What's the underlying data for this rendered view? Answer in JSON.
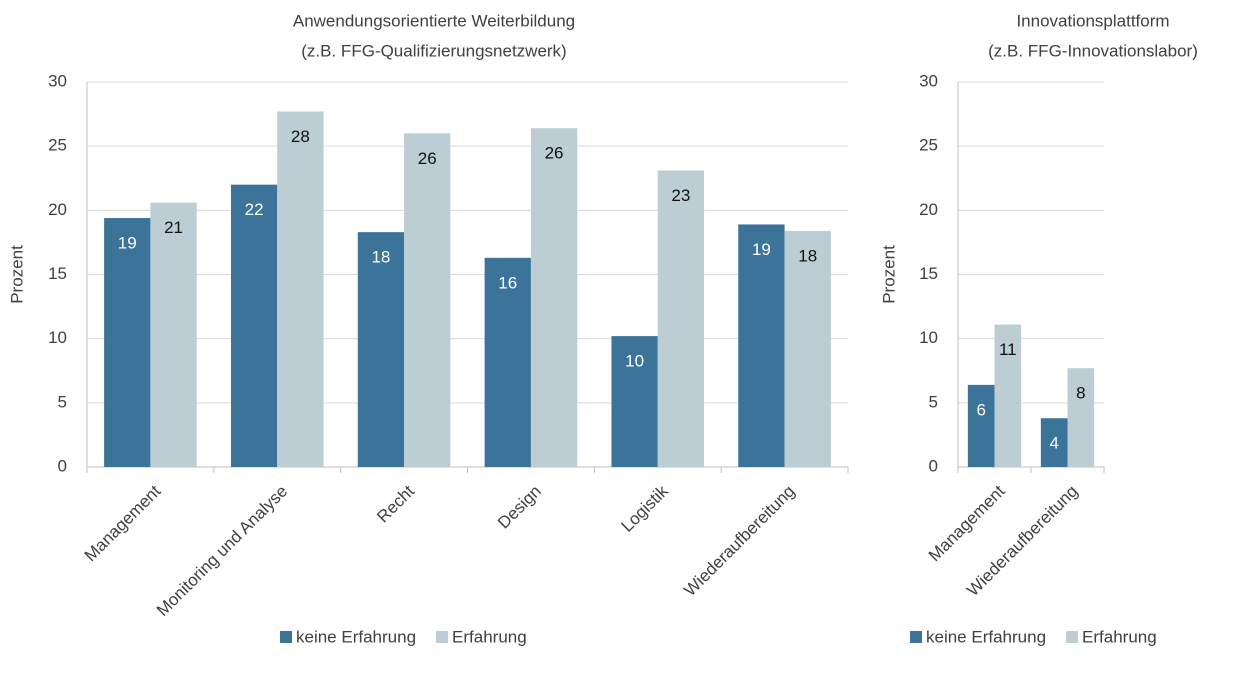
{
  "chart_data": [
    {
      "type": "bar",
      "title": "Anwendungsorientierte Weiterbildung",
      "subtitle": "(z.B. FFG-Qualifizierungsnetzwerk)",
      "y_label": "Prozent",
      "categories": [
        "Management",
        "Monitoring und Analyse",
        "Recht",
        "Design",
        "Logistik",
        "Wiederaufbereitung"
      ],
      "series": [
        {
          "name": "keine Erfahrung",
          "color": "#3b7399",
          "values": [
            19.4,
            22.0,
            18.3,
            16.3,
            10.2,
            18.9
          ],
          "value_labels": [
            "19",
            "22",
            "18",
            "16",
            "10",
            "19"
          ]
        },
        {
          "name": "Erfahrung",
          "color": "#bccdd3",
          "values": [
            20.6,
            27.7,
            26.0,
            26.4,
            23.1,
            18.4
          ],
          "value_labels": [
            "21",
            "28",
            "26",
            "26",
            "23",
            "18"
          ]
        }
      ],
      "ylim": [
        0,
        30
      ],
      "yticks": [
        0,
        5,
        10,
        15,
        20,
        25,
        30
      ],
      "grid": true,
      "legend": "bottom"
    },
    {
      "type": "bar",
      "title": "Innovationsplattform",
      "subtitle": "(z.B. FFG-Innovationslabor)",
      "y_label": "Prozent",
      "categories": [
        "Management",
        "Wiederaufbereitung"
      ],
      "series": [
        {
          "name": "keine Erfahrung",
          "color": "#3b7399",
          "values": [
            6.4,
            3.8
          ],
          "value_labels": [
            "6",
            "4"
          ]
        },
        {
          "name": "Erfahrung",
          "color": "#bccdd3",
          "values": [
            11.1,
            7.7
          ],
          "value_labels": [
            "11",
            "8"
          ]
        }
      ],
      "ylim": [
        0,
        30
      ],
      "yticks": [
        0,
        5,
        10,
        15,
        20,
        25,
        30
      ],
      "grid": true,
      "legend": "bottom"
    }
  ]
}
